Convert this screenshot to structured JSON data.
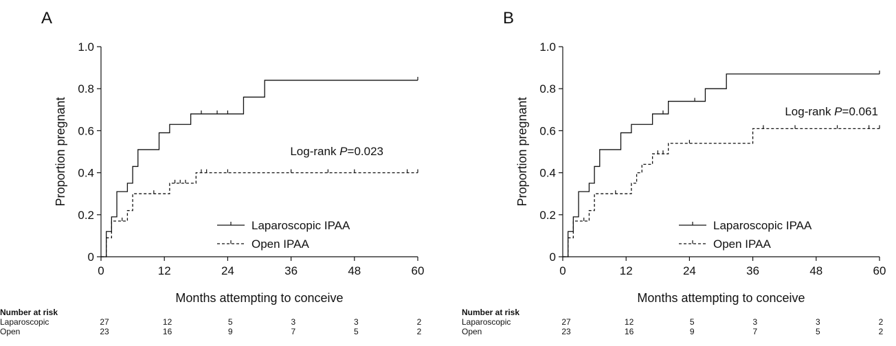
{
  "chart_data": [
    {
      "panel_label": "A",
      "type": "line",
      "step": true,
      "xlabel": "Months attempting to conceive",
      "ylabel": "Proportion pregnant",
      "xlim": [
        0,
        60
      ],
      "ylim": [
        0,
        1.0
      ],
      "xticks": [
        "0",
        "12",
        "24",
        "36",
        "48",
        "60"
      ],
      "yticks": [
        "0",
        "0.2",
        "0.4",
        "0.6",
        "0.8",
        "1.0"
      ],
      "annotation": {
        "prefix": "Log-rank ",
        "p": "P",
        "value": "=0.023"
      },
      "legend_position": "bottom-right",
      "series": [
        {
          "name": "Laparoscopic IPAA",
          "line_style": "solid",
          "steps": [
            [
              0,
              0
            ],
            [
              1,
              0.12
            ],
            [
              2,
              0.19
            ],
            [
              3,
              0.31
            ],
            [
              5,
              0.35
            ],
            [
              6,
              0.43
            ],
            [
              7,
              0.51
            ],
            [
              11,
              0.59
            ],
            [
              13,
              0.63
            ],
            [
              17,
              0.68
            ],
            [
              27,
              0.76
            ],
            [
              31,
              0.84
            ]
          ],
          "x_end": 60,
          "censored": [
            19,
            22,
            24,
            60
          ]
        },
        {
          "name": "Open IPAA",
          "line_style": "dashed",
          "steps": [
            [
              0,
              0
            ],
            [
              1,
              0.09
            ],
            [
              2,
              0.17
            ],
            [
              5,
              0.22
            ],
            [
              6,
              0.3
            ],
            [
              13,
              0.35
            ],
            [
              18,
              0.4
            ]
          ],
          "x_end": 60,
          "censored": [
            4,
            10,
            14,
            15,
            16,
            19,
            20,
            24,
            36,
            43,
            48,
            58,
            60
          ]
        }
      ],
      "risk_table": {
        "title": "Number at risk",
        "times": [
          0,
          12,
          24,
          36,
          48,
          60
        ],
        "rows": [
          {
            "label": "Laparoscopic",
            "values": [
              "27",
              "12",
              "5",
              "3",
              "3",
              "2"
            ]
          },
          {
            "label": "Open",
            "values": [
              "23",
              "16",
              "9",
              "7",
              "5",
              "2"
            ]
          }
        ]
      }
    },
    {
      "panel_label": "B",
      "type": "line",
      "step": true,
      "xlabel": "Months attempting to conceive",
      "ylabel": "Proportion pregnant",
      "xlim": [
        0,
        60
      ],
      "ylim": [
        0,
        1.0
      ],
      "xticks": [
        "0",
        "12",
        "24",
        "36",
        "48",
        "60"
      ],
      "yticks": [
        "0",
        "0.2",
        "0.4",
        "0.6",
        "0.8",
        "1.0"
      ],
      "annotation": {
        "prefix": "Log-rank ",
        "p": "P",
        "value": "=0.061"
      },
      "legend_position": "bottom-right",
      "series": [
        {
          "name": "Laparoscopic IPAA",
          "line_style": "solid",
          "steps": [
            [
              0,
              0
            ],
            [
              1,
              0.12
            ],
            [
              2,
              0.19
            ],
            [
              3,
              0.31
            ],
            [
              5,
              0.35
            ],
            [
              6,
              0.43
            ],
            [
              7,
              0.51
            ],
            [
              11,
              0.59
            ],
            [
              13,
              0.63
            ],
            [
              17,
              0.68
            ],
            [
              20,
              0.74
            ],
            [
              27,
              0.8
            ],
            [
              31,
              0.87
            ]
          ],
          "x_end": 60,
          "censored": [
            19,
            25,
            60
          ]
        },
        {
          "name": "Open IPAA",
          "line_style": "dashed",
          "steps": [
            [
              0,
              0
            ],
            [
              1,
              0.09
            ],
            [
              2,
              0.17
            ],
            [
              5,
              0.22
            ],
            [
              6,
              0.3
            ],
            [
              13,
              0.35
            ],
            [
              14,
              0.4
            ],
            [
              15,
              0.44
            ],
            [
              17,
              0.49
            ],
            [
              20,
              0.54
            ],
            [
              36,
              0.61
            ]
          ],
          "x_end": 60,
          "censored": [
            4,
            10,
            18,
            19,
            24,
            38,
            44,
            52,
            58,
            60
          ]
        }
      ],
      "risk_table": {
        "title": "Number at risk",
        "times": [
          0,
          12,
          24,
          36,
          48,
          60
        ],
        "rows": [
          {
            "label": "Laparoscopic",
            "values": [
              "27",
              "12",
              "5",
              "3",
              "3",
              "2"
            ]
          },
          {
            "label": "Open",
            "values": [
              "23",
              "16",
              "9",
              "7",
              "5",
              "2"
            ]
          }
        ]
      }
    }
  ]
}
